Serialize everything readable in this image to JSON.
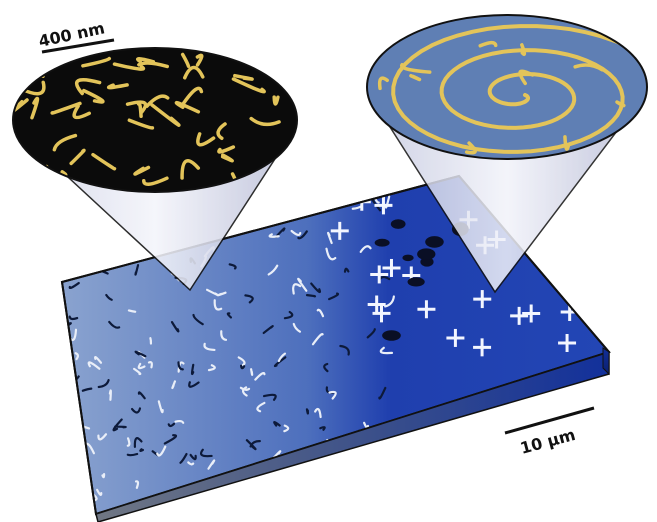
{
  "scale_bars": {
    "zoom": "400 nm",
    "slab": "10 µm"
  },
  "colors": {
    "substrate_blue": "#2f56b8",
    "stripe_gold": "#e3c45a",
    "domain_black": "#0b0b0b",
    "spiral_background_blue": "#5f7fb4",
    "cone_gray": "#d9dbe9"
  }
}
